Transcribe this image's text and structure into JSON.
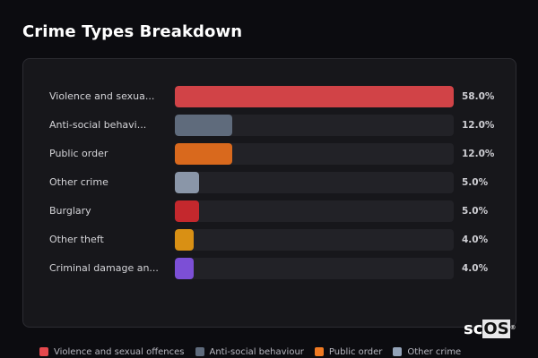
{
  "title": "Crime Types Breakdown",
  "rows": [
    {
      "label": "Violence and sexua...",
      "value": "58.0%",
      "pct": 58.0,
      "color": "#d14347"
    },
    {
      "label": "Anti-social behavi...",
      "value": "12.0%",
      "pct": 12.0,
      "color": "#5f6b7c"
    },
    {
      "label": "Public order",
      "value": "12.0%",
      "pct": 12.0,
      "color": "#d9691d"
    },
    {
      "label": "Other crime",
      "value": "5.0%",
      "pct": 5.0,
      "color": "#8a96a8"
    },
    {
      "label": "Burglary",
      "value": "5.0%",
      "pct": 5.0,
      "color": "#c4282d"
    },
    {
      "label": "Other theft",
      "value": "4.0%",
      "pct": 4.0,
      "color": "#d99014"
    },
    {
      "label": "Criminal damage an...",
      "value": "4.0%",
      "pct": 4.0,
      "color": "#7c4fd6"
    }
  ],
  "legend": [
    {
      "label": "Violence and sexual offences",
      "color": "#e5484d"
    },
    {
      "label": "Anti-social behaviour",
      "color": "#5f6b7c"
    },
    {
      "label": "Public order",
      "color": "#f07a22"
    },
    {
      "label": "Other crime",
      "color": "#94a3b8"
    }
  ],
  "watermark": {
    "sc": "sc",
    "os": "OS",
    "reg": "®"
  },
  "chart_data": {
    "type": "bar",
    "orientation": "horizontal",
    "title": "Crime Types Breakdown",
    "categories": [
      "Violence and sexual offences",
      "Anti-social behaviour",
      "Public order",
      "Other crime",
      "Burglary",
      "Other theft",
      "Criminal damage and arson"
    ],
    "values": [
      58.0,
      12.0,
      12.0,
      5.0,
      5.0,
      4.0,
      4.0
    ],
    "value_labels": [
      "58.0%",
      "12.0%",
      "12.0%",
      "5.0%",
      "5.0%",
      "4.0%",
      "4.0%"
    ],
    "colors": [
      "#d14347",
      "#5f6b7c",
      "#d9691d",
      "#8a96a8",
      "#c4282d",
      "#d99014",
      "#7c4fd6"
    ],
    "xlabel": "",
    "ylabel": "",
    "xlim": [
      0,
      58
    ],
    "grid": false,
    "legend": [
      "Violence and sexual offences",
      "Anti-social behaviour",
      "Public order",
      "Other crime"
    ],
    "legend_position": "bottom"
  }
}
